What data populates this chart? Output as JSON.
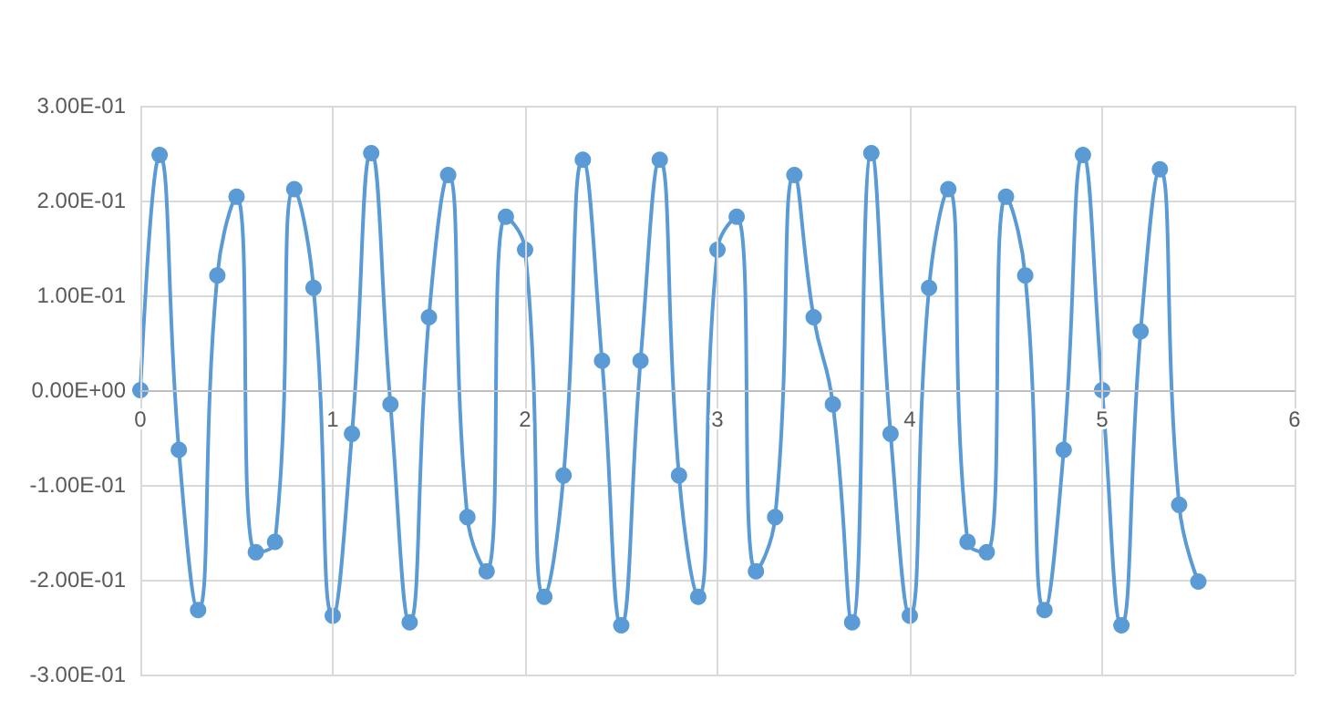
{
  "chart_data": {
    "type": "line",
    "marker": "circle",
    "grid": true,
    "x": [
      0,
      0.1,
      0.2,
      0.3,
      0.4,
      0.5,
      0.6,
      0.7,
      0.8,
      0.9,
      1,
      1.1,
      1.2,
      1.3,
      1.4,
      1.5,
      1.6,
      1.7,
      1.8,
      1.9,
      2,
      2.1,
      2.2,
      2.3,
      2.4,
      2.5,
      2.6,
      2.7,
      2.8,
      2.9,
      3,
      3.1,
      3.2,
      3.3,
      3.4,
      3.5,
      3.6,
      3.7,
      3.8,
      3.9,
      4,
      4.1,
      4.2,
      4.3,
      4.4,
      4.5,
      4.6,
      4.7,
      4.8,
      4.9,
      5,
      5.1,
      5.2,
      5.3,
      5.4,
      5.5
    ],
    "series": [
      {
        "color": "#5b9bd5",
        "values": [
          0,
          0.248,
          -0.063,
          -0.232,
          0.121,
          0.204,
          -0.171,
          -0.16,
          0.212,
          0.108,
          -0.238,
          -0.046,
          0.25,
          -0.015,
          -0.245,
          0.077,
          0.227,
          -0.134,
          -0.191,
          0.183,
          0.148,
          -0.218,
          -0.09,
          0.243,
          0.031,
          -0.248,
          0.031,
          0.243,
          -0.09,
          -0.218,
          0.148,
          0.183,
          -0.191,
          -0.134,
          0.227,
          0.077,
          -0.015,
          -0.245,
          0.25,
          -0.046,
          -0.238,
          0.108,
          0.212,
          -0.16,
          -0.171,
          0.204,
          0.121,
          -0.232,
          -0.063,
          0.248,
          0,
          -0.248,
          0.062,
          0.233,
          -0.121,
          -0.202
        ]
      }
    ],
    "xlim": [
      0,
      6
    ],
    "xticks": [
      0,
      1,
      2,
      3,
      4,
      5,
      6
    ],
    "ylim": [
      -0.3,
      0.3
    ],
    "yticks": [
      {
        "value": -0.3,
        "label": "-3.00E-01"
      },
      {
        "value": -0.2,
        "label": "-2.00E-01"
      },
      {
        "value": -0.1,
        "label": "-1.00E-01"
      },
      {
        "value": 0,
        "label": "0.00E+00"
      },
      {
        "value": 0.1,
        "label": "1.00E-01"
      },
      {
        "value": 0.2,
        "label": "2.00E-01"
      },
      {
        "value": 0.3,
        "label": "3.00E-01"
      }
    ]
  }
}
